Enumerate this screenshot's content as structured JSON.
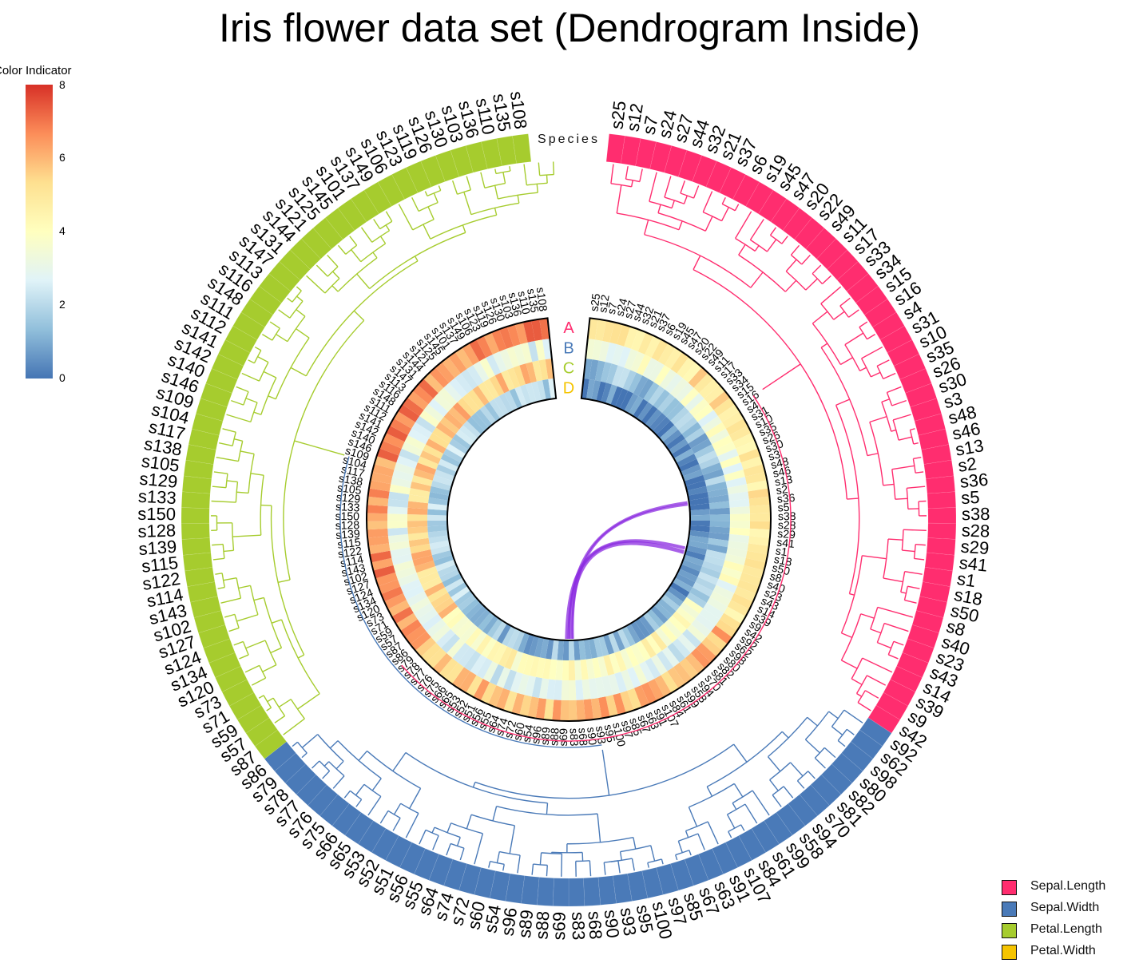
{
  "title": "Iris flower data set (Dendrogram Inside)",
  "color_indicator": {
    "title": "Color Indicator",
    "ticks": [
      "0",
      "2",
      "4",
      "6",
      "8"
    ],
    "min": 0,
    "max": 8,
    "gradient": [
      "#4575b4",
      "#91bfdb",
      "#e0f3f8",
      "#ffffbf",
      "#fee090",
      "#fc8d59",
      "#d73027"
    ]
  },
  "legend": {
    "items": [
      {
        "label": "Sepal.Length",
        "color": "#ff2d6f"
      },
      {
        "label": "Sepal.Width",
        "color": "#4a7ab8"
      },
      {
        "label": "Petal.Length",
        "color": "#a6cc2e"
      },
      {
        "label": "Petal.Width",
        "color": "#f5c400"
      }
    ]
  },
  "track_labels": {
    "species": "Species",
    "heat": [
      {
        "label": "A",
        "color": "#ff2d6f"
      },
      {
        "label": "B",
        "color": "#4a7ab8"
      },
      {
        "label": "C",
        "color": "#a6cc2e"
      },
      {
        "label": "D",
        "color": "#f5c400"
      }
    ]
  },
  "chart_data": {
    "type": "heatmap",
    "layout": "circular",
    "sample_order": [
      "s25",
      "s12",
      "s7",
      "s24",
      "s27",
      "s44",
      "s32",
      "s21",
      "s37",
      "s6",
      "s19",
      "s45",
      "s47",
      "s20",
      "s22",
      "s49",
      "s11",
      "s17",
      "s33",
      "s34",
      "s15",
      "s16",
      "s4",
      "s31",
      "s10",
      "s35",
      "s26",
      "s30",
      "s3",
      "s48",
      "s46",
      "s13",
      "s2",
      "s36",
      "s5",
      "s38",
      "s28",
      "s29",
      "s41",
      "s1",
      "s18",
      "s50",
      "s8",
      "s40",
      "s23",
      "s43",
      "s14",
      "s39",
      "s9",
      "s42",
      "s92",
      "s62",
      "s98",
      "s80",
      "s82",
      "s81",
      "s70",
      "s94",
      "s58",
      "s99",
      "s61",
      "s84",
      "s107",
      "s91",
      "s63",
      "s67",
      "s85",
      "s97",
      "s100",
      "s95",
      "s93",
      "s90",
      "s68",
      "s83",
      "s69",
      "s88",
      "s89",
      "s96",
      "s54",
      "s60",
      "s72",
      "s74",
      "s64",
      "s55",
      "s56",
      "s51",
      "s52",
      "s53",
      "s65",
      "s66",
      "s75",
      "s76",
      "s77",
      "s78",
      "s79",
      "s86",
      "s87",
      "s57",
      "s59",
      "s71",
      "s73",
      "s120",
      "s134",
      "s124",
      "s127",
      "s102",
      "s143",
      "s114",
      "s122",
      "s115",
      "s139",
      "s128",
      "s150",
      "s133",
      "s129",
      "s105",
      "s138",
      "s117",
      "s104",
      "s109",
      "s146",
      "s140",
      "s142",
      "s141",
      "s112",
      "s111",
      "s148",
      "s116",
      "s113",
      "s147",
      "s131",
      "s144",
      "s121",
      "s125",
      "s145",
      "s101",
      "s137",
      "s149",
      "s106",
      "s123",
      "s119",
      "s126",
      "s130",
      "s103",
      "s136",
      "s110",
      "s135",
      "s108"
    ],
    "clusters": [
      {
        "species": "Sepal.Length",
        "count": 50
      },
      {
        "species": "Sepal.Width",
        "count": 46
      },
      {
        "species": "Petal.Length",
        "count": 54
      }
    ],
    "tracks": [
      "A",
      "B",
      "C",
      "D"
    ],
    "color_scale": {
      "min": 0,
      "max": 8
    }
  }
}
